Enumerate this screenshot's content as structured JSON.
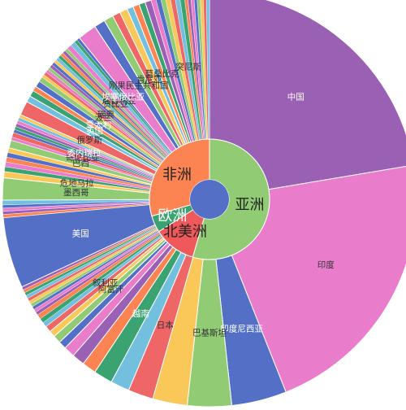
{
  "chart_data": {
    "type": "sunburst",
    "title": "",
    "center_colour": "#5470c6",
    "inner_ring": [
      {
        "name": "亚洲",
        "value": 0.545,
        "color": "#91cc75",
        "label_color": "#222222"
      },
      {
        "name": "北美洲",
        "value": 0.115,
        "color": "#f0595b",
        "label_color": "#222222"
      },
      {
        "name": "欧洲",
        "value": 0.045,
        "color": "#3ba272",
        "label_color": "#ffffff"
      },
      {
        "name": "非洲",
        "value": 0.295,
        "color": "#fc8452",
        "label_color": "#222222"
      }
    ],
    "outer_ring": [
      {
        "name": "中国",
        "value": 0.182,
        "color": "#9a60b4",
        "label_color": "#ffffff"
      },
      {
        "name": "印度",
        "value": 0.176,
        "color": "#ea7ccc",
        "label_color": "#333333"
      },
      {
        "name": "印度尼西亚",
        "value": 0.035,
        "color": "#5470c6",
        "label_color": "#ffffff"
      },
      {
        "name": "巴基斯坦",
        "value": 0.028,
        "color": "#91cc75",
        "label_color": "#333333"
      },
      {
        "name": "",
        "value": 0.022,
        "color": "#fac858",
        "label_color": "#333333"
      },
      {
        "name": "日本",
        "value": 0.016,
        "color": "#ee6666",
        "label_color": "#333333"
      },
      {
        "name": "",
        "value": 0.012,
        "color": "#73c0de",
        "label_color": "#333333"
      },
      {
        "name": "越南",
        "value": 0.012,
        "color": "#3ba272",
        "label_color": "#ffffff"
      },
      {
        "name": "",
        "value": 0.009,
        "color": "#fc8452",
        "label_color": "#333333"
      },
      {
        "name": "",
        "value": 0.008,
        "color": "#9a60b4",
        "label_color": "#333333"
      },
      {
        "name": "",
        "value": 0.007,
        "color": "#ea7ccc",
        "label_color": "#333333"
      },
      {
        "name": "",
        "value": 0.005,
        "color": "#5470c6",
        "label_color": "#333333"
      },
      {
        "name": "阿富汗",
        "value": 0.005,
        "color": "#91cc75",
        "label_color": "#333333"
      },
      {
        "name": "",
        "value": 0.004,
        "color": "#fac858",
        "label_color": "#333333"
      },
      {
        "name": "叙利亚",
        "value": 0.004,
        "color": "#ee6666",
        "label_color": "#333333"
      },
      {
        "name": "",
        "value": 0.003,
        "color": "#73c0de",
        "label_color": "#333333"
      },
      {
        "name": "",
        "value": 0.003,
        "color": "#3ba272",
        "label_color": "#333333"
      },
      {
        "name": "",
        "value": 0.003,
        "color": "#fc8452",
        "label_color": "#333333"
      },
      {
        "name": "",
        "value": 0.002,
        "color": "#9a60b4",
        "label_color": "#333333"
      },
      {
        "name": "",
        "value": 0.002,
        "color": "#ea7ccc",
        "label_color": "#333333"
      },
      {
        "name": "",
        "value": 0.002,
        "color": "#5470c6",
        "label_color": "#333333"
      },
      {
        "name": "",
        "value": 0.002,
        "color": "#91cc75",
        "label_color": "#333333"
      },
      {
        "name": "",
        "value": 0.002,
        "color": "#fac858",
        "label_color": "#333333"
      },
      {
        "name": "",
        "value": 0.002,
        "color": "#ee6666",
        "label_color": "#333333"
      },
      {
        "name": "",
        "value": 0.002,
        "color": "#73c0de",
        "label_color": "#333333"
      },
      {
        "name": "",
        "value": 0.002,
        "color": "#3ba272",
        "label_color": "#333333"
      },
      {
        "name": "",
        "value": 0.002,
        "color": "#fc8452",
        "label_color": "#333333"
      },
      {
        "name": "",
        "value": 0.002,
        "color": "#9a60b4",
        "label_color": "#333333"
      },
      {
        "name": "美国",
        "value": 0.045,
        "color": "#5470c6",
        "label_color": "#ffffff"
      },
      {
        "name": "",
        "value": 0.002,
        "color": "#fc8452",
        "label_color": "#333333"
      },
      {
        "name": "",
        "value": 0.002,
        "color": "#9a60b4",
        "label_color": "#333333"
      },
      {
        "name": "",
        "value": 0.002,
        "color": "#ea7ccc",
        "label_color": "#333333"
      },
      {
        "name": "",
        "value": 0.002,
        "color": "#5470c6",
        "label_color": "#333333"
      },
      {
        "name": "",
        "value": 0.003,
        "color": "#73c0de",
        "label_color": "#333333"
      },
      {
        "name": "墨西哥",
        "value": 0.014,
        "color": "#91cc75",
        "label_color": "#333333"
      },
      {
        "name": "危地马拉",
        "value": 0.004,
        "color": "#fac858",
        "label_color": "#333333"
      },
      {
        "name": "",
        "value": 0.003,
        "color": "#3ba272",
        "label_color": "#333333"
      },
      {
        "name": "",
        "value": 0.003,
        "color": "#ea7ccc",
        "label_color": "#333333"
      },
      {
        "name": "",
        "value": 0.003,
        "color": "#fc8452",
        "label_color": "#333333"
      },
      {
        "name": "",
        "value": 0.003,
        "color": "#5470c6",
        "label_color": "#333333"
      },
      {
        "name": "",
        "value": 0.003,
        "color": "#fac858",
        "label_color": "#333333"
      },
      {
        "name": "巴西",
        "value": 0.005,
        "color": "#91cc75",
        "label_color": "#333333"
      },
      {
        "name": "",
        "value": 0.002,
        "color": "#ea7ccc",
        "label_color": "#333333"
      },
      {
        "name": "哥伦比亚",
        "value": 0.003,
        "color": "#ee6666",
        "label_color": "#333333"
      },
      {
        "name": "",
        "value": 0.002,
        "color": "#5470c6",
        "label_color": "#333333"
      },
      {
        "name": "委内瑞拉",
        "value": 0.002,
        "color": "#3ba272",
        "label_color": "#ffffff"
      },
      {
        "name": "",
        "value": 0.002,
        "color": "#9a60b4",
        "label_color": "#333333"
      },
      {
        "name": "",
        "value": 0.002,
        "color": "#ea7ccc",
        "label_color": "#333333"
      },
      {
        "name": "",
        "value": 0.002,
        "color": "#73c0de",
        "label_color": "#333333"
      },
      {
        "name": "",
        "value": 0.002,
        "color": "#fac858",
        "label_color": "#333333"
      },
      {
        "name": "俄罗斯",
        "value": 0.009,
        "color": "#ee6666",
        "label_color": "#333333"
      },
      {
        "name": "",
        "value": 0.004,
        "color": "#73c0de",
        "label_color": "#333333"
      },
      {
        "name": "英国",
        "value": 0.004,
        "color": "#3ba272",
        "label_color": "#ffffff"
      },
      {
        "name": "",
        "value": 0.003,
        "color": "#fc8452",
        "label_color": "#333333"
      },
      {
        "name": "意大利",
        "value": 0.004,
        "color": "#5470c6",
        "label_color": "#ffffff"
      },
      {
        "name": "",
        "value": 0.003,
        "color": "#91cc75",
        "label_color": "#333333"
      },
      {
        "name": "",
        "value": 0.002,
        "color": "#fac858",
        "label_color": "#333333"
      },
      {
        "name": "波兰",
        "value": 0.002,
        "color": "#ee6666",
        "label_color": "#333333"
      },
      {
        "name": "",
        "value": 0.002,
        "color": "#ea7ccc",
        "label_color": "#333333"
      },
      {
        "name": "瑞典",
        "value": 0.002,
        "color": "#91cc75",
        "label_color": "#333333"
      },
      {
        "name": "",
        "value": 0.002,
        "color": "#9a60b4",
        "label_color": "#333333"
      },
      {
        "name": "",
        "value": 0.002,
        "color": "#5470c6",
        "label_color": "#333333"
      },
      {
        "name": "",
        "value": 0.002,
        "color": "#fac858",
        "label_color": "#333333"
      },
      {
        "name": "",
        "value": 0.002,
        "color": "#73c0de",
        "label_color": "#333333"
      },
      {
        "name": "",
        "value": 0.002,
        "color": "#3ba272",
        "label_color": "#333333"
      },
      {
        "name": "",
        "value": 0.002,
        "color": "#fc8452",
        "label_color": "#333333"
      },
      {
        "name": "赞比亚",
        "value": 0.002,
        "color": "#9a60b4",
        "label_color": "#333333"
      },
      {
        "name": "",
        "value": 0.002,
        "color": "#91cc75",
        "label_color": "#333333"
      },
      {
        "name": "尼日利亚",
        "value": 0.003,
        "color": "#ea7ccc",
        "label_color": "#333333"
      },
      {
        "name": "",
        "value": 0.003,
        "color": "#73c0de",
        "label_color": "#333333"
      },
      {
        "name": "埃塞俄比亚",
        "value": 0.002,
        "color": "#3ba272",
        "label_color": "#ffffff"
      },
      {
        "name": "",
        "value": 0.002,
        "color": "#5470c6",
        "label_color": "#333333"
      },
      {
        "name": "",
        "value": 0.012,
        "color": "#ea7ccc",
        "label_color": "#333333"
      },
      {
        "name": "刚果民主共和国",
        "value": 0.007,
        "color": "#5470c6",
        "label_color": "#333333"
      },
      {
        "name": "",
        "value": 0.006,
        "color": "#91cc75",
        "label_color": "#333333"
      },
      {
        "name": "肯尼亚",
        "value": 0.005,
        "color": "#ee6666",
        "label_color": "#333333"
      },
      {
        "name": "",
        "value": 0.005,
        "color": "#fac858",
        "label_color": "#333333"
      },
      {
        "name": "",
        "value": 0.004,
        "color": "#73c0de",
        "label_color": "#333333"
      },
      {
        "name": "莫桑比克",
        "value": 0.004,
        "color": "#fc8452",
        "label_color": "#333333"
      },
      {
        "name": "",
        "value": 0.004,
        "color": "#3ba272",
        "label_color": "#333333"
      },
      {
        "name": "",
        "value": 0.004,
        "color": "#9a60b4",
        "label_color": "#333333"
      },
      {
        "name": "",
        "value": 0.003,
        "color": "#ea7ccc",
        "label_color": "#333333"
      },
      {
        "name": "",
        "value": 0.003,
        "color": "#5470c6",
        "label_color": "#333333"
      },
      {
        "name": "",
        "value": 0.003,
        "color": "#91cc75",
        "label_color": "#333333"
      },
      {
        "name": "",
        "value": 0.003,
        "color": "#fac858",
        "label_color": "#333333"
      },
      {
        "name": "",
        "value": 0.003,
        "color": "#ee6666",
        "label_color": "#333333"
      },
      {
        "name": "突尼斯",
        "value": 0.003,
        "color": "#73c0de",
        "label_color": "#333333"
      },
      {
        "name": "",
        "value": 0.003,
        "color": "#3ba272",
        "label_color": "#333333"
      },
      {
        "name": "",
        "value": 0.002,
        "color": "#fc8452",
        "label_color": "#333333"
      },
      {
        "name": "",
        "value": 0.002,
        "color": "#9a60b4",
        "label_color": "#333333"
      },
      {
        "name": "",
        "value": 0.002,
        "color": "#ea7ccc",
        "label_color": "#333333"
      },
      {
        "name": "",
        "value": 0.002,
        "color": "#5470c6",
        "label_color": "#333333"
      },
      {
        "name": "",
        "value": 0.002,
        "color": "#91cc75",
        "label_color": "#333333"
      },
      {
        "name": "",
        "value": 0.002,
        "color": "#fac858",
        "label_color": "#333333"
      },
      {
        "name": "",
        "value": 0.002,
        "color": "#ee6666",
        "label_color": "#333333"
      },
      {
        "name": "",
        "value": 0.002,
        "color": "#73c0de",
        "label_color": "#333333"
      }
    ]
  }
}
